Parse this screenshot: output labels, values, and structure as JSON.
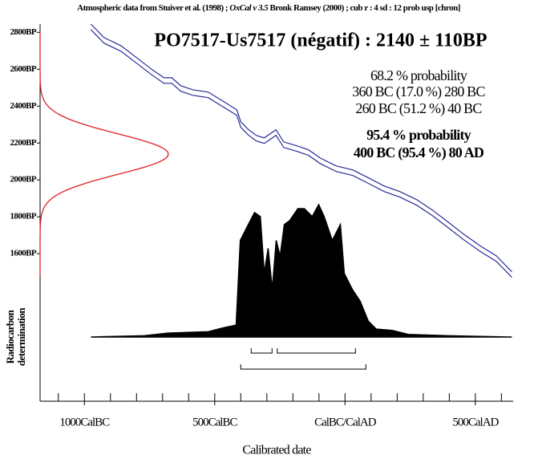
{
  "chart_data": {
    "type": "calibration",
    "header": [
      "Atmospheric data from Stuiver et al. (1998) ;",
      "OxCal v 3.5",
      "Bronk Ramsey (2000) ; cub r : 4 sd : 12 prob usp [chron]"
    ],
    "title": "PO7517-Us7517 (négatif) : 2140 ± 110BP",
    "summary": [
      "68.2 % probability",
      "360 BC (17.0 %) 280 BC",
      "260 BC (51.2 %) 40 BC",
      "95.4 % probability",
      "400 BC (95.4 %) 80 AD"
    ],
    "xlabel": "Calibrated date",
    "ylabel": [
      "Radiocarbon",
      "determination"
    ],
    "xlim": [
      -1170,
      645
    ],
    "ylim": [
      800,
      2845
    ],
    "xticks": [
      {
        "value": -1000,
        "label": "1000CalBC"
      },
      {
        "value": -500,
        "label": "500CalBC"
      },
      {
        "value": 0,
        "label": "CalBC/CalAD"
      },
      {
        "value": 500,
        "label": "500CalAD"
      }
    ],
    "xminor": [
      -1100,
      -1000,
      -900,
      -800,
      -700,
      -600,
      -500,
      -400,
      -300,
      -200,
      -100,
      0,
      100,
      200,
      300,
      400,
      500,
      600
    ],
    "yticks": [
      {
        "value": 2800,
        "label": "2800BP"
      },
      {
        "value": 2600,
        "label": "2600BP"
      },
      {
        "value": 2400,
        "label": "2400BP"
      },
      {
        "value": 2200,
        "label": "2200BP"
      },
      {
        "value": 2000,
        "label": "2000BP"
      },
      {
        "value": 1800,
        "label": "1800BP"
      },
      {
        "value": 1600,
        "label": "1600BP"
      }
    ],
    "measurement": {
      "value": 2140,
      "error": 110,
      "color": "#e02020"
    },
    "x": [
      -975,
      -925,
      -860,
      -800,
      -740,
      -695,
      -665,
      -630,
      -585,
      -525,
      -465,
      -415,
      -400,
      -370,
      -340,
      -310,
      -265,
      -235,
      -185,
      -140,
      -95,
      -35,
      30,
      90,
      150,
      210,
      275,
      335,
      395,
      455,
      520,
      580,
      640
    ],
    "series": [
      {
        "color": "#2a2a9a",
        "values": [
          2845,
          2772,
          2728,
          2663,
          2598,
          2554,
          2554,
          2511,
          2489,
          2476,
          2424,
          2380,
          2315,
          2272,
          2241,
          2228,
          2272,
          2206,
          2185,
          2163,
          2119,
          2076,
          2054,
          2011,
          1967,
          1937,
          1893,
          1837,
          1772,
          1706,
          1641,
          1589,
          1502
        ]
      },
      {
        "color": "#2a2a9a",
        "values": [
          2815,
          2742,
          2698,
          2633,
          2568,
          2524,
          2524,
          2481,
          2459,
          2446,
          2394,
          2350,
          2285,
          2242,
          2211,
          2198,
          2242,
          2176,
          2155,
          2133,
          2089,
          2046,
          2024,
          1981,
          1937,
          1907,
          1863,
          1807,
          1742,
          1676,
          1611,
          1559,
          1472
        ]
      }
    ],
    "distribution": {
      "color": "#000000",
      "x": [
        -975,
        -770,
        -680,
        -525,
        -465,
        -418,
        -402,
        -371,
        -347,
        -325,
        -310,
        -295,
        -279,
        -264,
        -249,
        -233,
        -212,
        -181,
        -156,
        -126,
        -101,
        -80,
        -49,
        -18,
        -3,
        28,
        58,
        89,
        120,
        181,
        242,
        396,
        640
      ],
      "values": [
        0,
        1,
        3,
        4,
        7,
        9,
        73,
        85,
        94,
        91,
        48,
        67,
        36,
        73,
        61,
        85,
        88,
        97,
        97,
        91,
        100,
        91,
        73,
        85,
        48,
        36,
        27,
        12,
        6,
        5,
        2,
        1,
        0
      ],
      "vlim": [
        0,
        100
      ]
    },
    "ranges_68": [
      {
        "from": -360,
        "to": -280
      },
      {
        "from": -260,
        "to": 40
      }
    ],
    "ranges_95": [
      {
        "from": -400,
        "to": 80
      }
    ]
  }
}
